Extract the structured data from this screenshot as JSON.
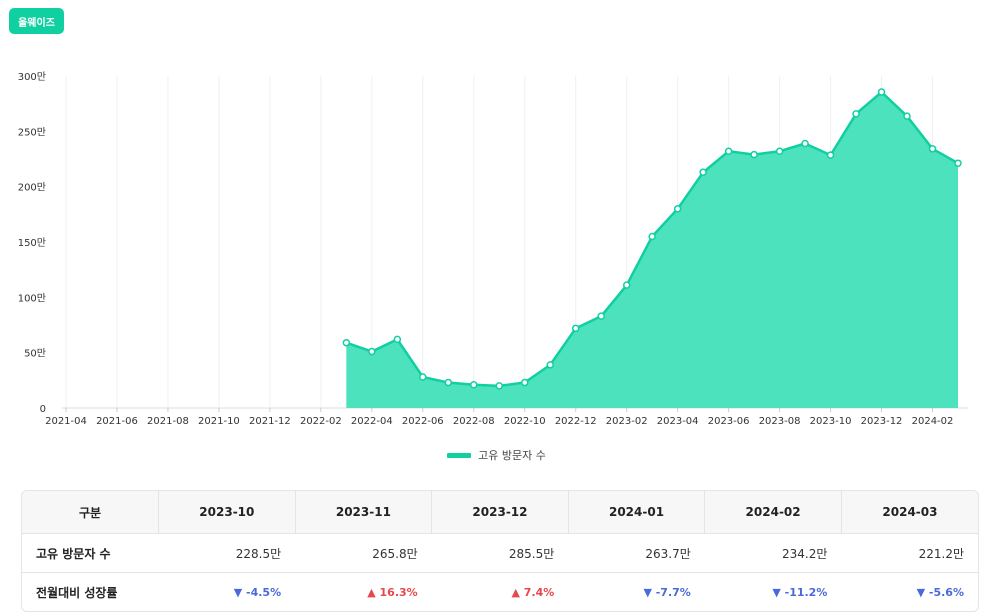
{
  "brand": {
    "badge_label": "올웨이즈"
  },
  "chart_data": {
    "type": "area",
    "title": "",
    "xlabel": "",
    "ylabel": "",
    "y_unit": "만",
    "ylim": [
      0,
      300
    ],
    "y_ticks": [
      "0",
      "50만",
      "100만",
      "150만",
      "200만",
      "250만",
      "300만"
    ],
    "x_tick_labels": [
      "2021-04",
      "2021-06",
      "2021-08",
      "2021-10",
      "2021-12",
      "2022-02",
      "2022-04",
      "2022-06",
      "2022-08",
      "2022-10",
      "2022-12",
      "2023-02",
      "2023-04",
      "2023-06",
      "2023-08",
      "2023-10",
      "2023-12",
      "2024-02"
    ],
    "grid": true,
    "legend": "bottom",
    "x": [
      "2021-04",
      "2021-05",
      "2021-06",
      "2021-07",
      "2021-08",
      "2021-09",
      "2021-10",
      "2021-11",
      "2021-12",
      "2022-01",
      "2022-02",
      "2022-03",
      "2022-04",
      "2022-05",
      "2022-06",
      "2022-07",
      "2022-08",
      "2022-09",
      "2022-10",
      "2022-11",
      "2022-12",
      "2023-01",
      "2023-02",
      "2023-03",
      "2023-04",
      "2023-05",
      "2023-06",
      "2023-07",
      "2023-08",
      "2023-09",
      "2023-10",
      "2023-11",
      "2023-12",
      "2024-01",
      "2024-02",
      "2024-03"
    ],
    "series": [
      {
        "name": "고유 방문자 수",
        "color": "#10cfa0",
        "values": [
          null,
          null,
          null,
          null,
          null,
          null,
          null,
          null,
          null,
          null,
          null,
          59,
          51,
          62,
          28,
          23,
          21,
          20,
          23,
          39,
          72,
          83,
          111,
          155,
          180,
          213,
          232,
          229,
          232,
          239,
          228.5,
          265.8,
          285.5,
          263.7,
          234.2,
          221.2
        ]
      }
    ]
  },
  "table": {
    "header_label": "구분",
    "columns": [
      "2023-10",
      "2023-11",
      "2023-12",
      "2024-01",
      "2024-02",
      "2024-03"
    ],
    "rows": [
      {
        "label": "고유 방문자 수",
        "cells": [
          "228.5만",
          "265.8만",
          "285.5만",
          "263.7만",
          "234.2만",
          "221.2만"
        ]
      },
      {
        "label": "전월대비 성장률",
        "cells": [
          "-4.5%",
          "16.3%",
          "7.4%",
          "-7.7%",
          "-11.2%",
          "-5.6%"
        ],
        "directions": [
          "down",
          "up",
          "up",
          "down",
          "down",
          "down"
        ]
      }
    ]
  }
}
